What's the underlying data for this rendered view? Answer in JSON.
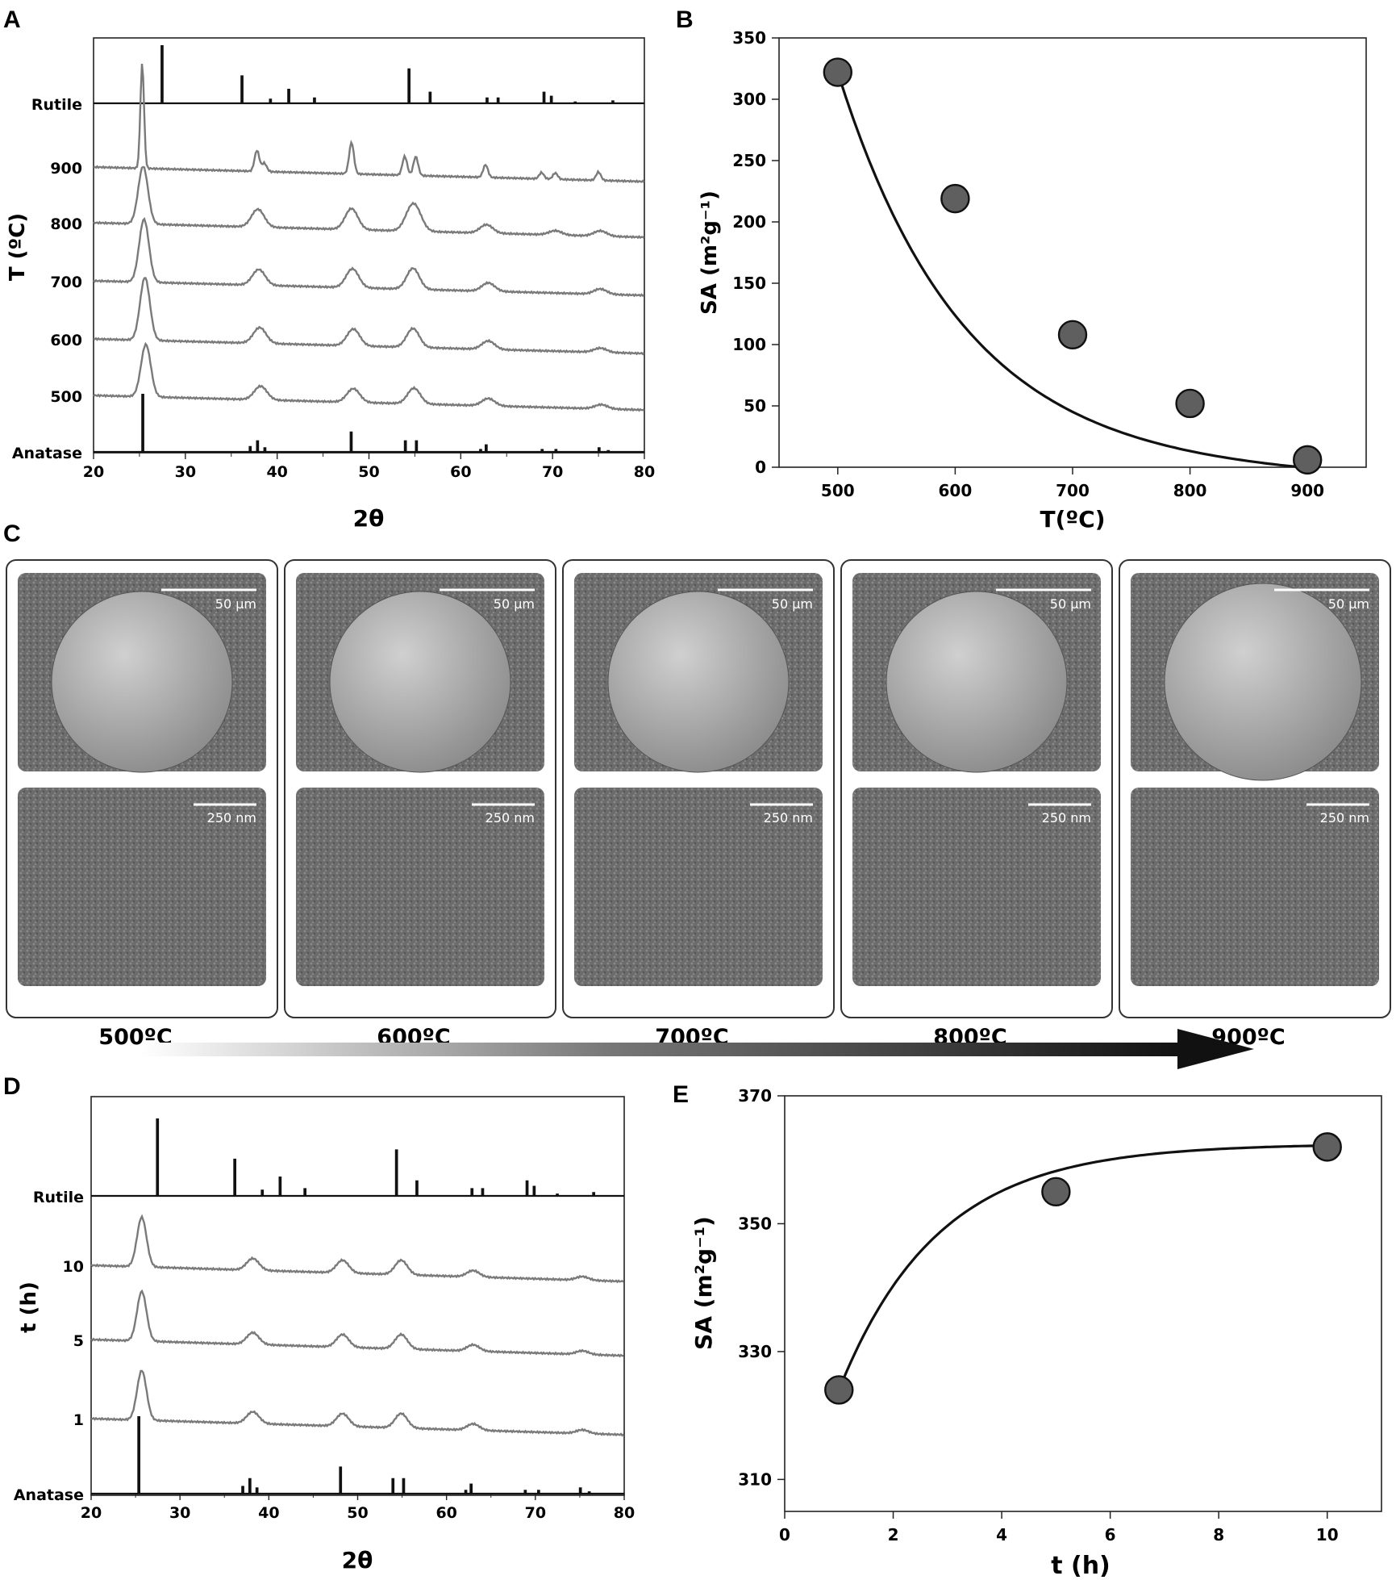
{
  "panels": {
    "A": {
      "letter": "A"
    },
    "B": {
      "letter": "B"
    },
    "C": {
      "letter": "C"
    },
    "D": {
      "letter": "D"
    },
    "E": {
      "letter": "E"
    }
  },
  "sem": {
    "columns": [
      {
        "label": "500ºC",
        "scale_top": "50 µm",
        "scale_bottom": "250 nm"
      },
      {
        "label": "600ºC",
        "scale_top": "50 µm",
        "scale_bottom": "250 nm"
      },
      {
        "label": "700ºC",
        "scale_top": "50 µm",
        "scale_bottom": "250 nm"
      },
      {
        "label": "800ºC",
        "scale_top": "50 µm",
        "scale_bottom": "250 nm"
      },
      {
        "label": "900ºC",
        "scale_top": "50 µm",
        "scale_bottom": "250 nm"
      }
    ]
  },
  "colors": {
    "reference_pattern": "#111111",
    "sample_pattern": "#7a7a7a",
    "marker_fill": "#5f5f5f",
    "sem_background": "#6f6f6f",
    "sphere": "#a9a9a9",
    "arrow": "#111111"
  },
  "icons": {
    "trend_arrow": "right-arrow-gradient-icon"
  },
  "chart_data": [
    {
      "panel": "A",
      "type": "line",
      "xlabel": "2θ",
      "ylabel": "T (ºC)",
      "xlim": [
        20,
        80
      ],
      "xticks": [
        20,
        30,
        40,
        50,
        60,
        70,
        80
      ],
      "series": [
        {
          "name": "Rutile",
          "kind": "reference",
          "peaks": [
            [
              27.4,
              1.0
            ],
            [
              36.1,
              0.48
            ],
            [
              39.2,
              0.08
            ],
            [
              41.2,
              0.25
            ],
            [
              44.0,
              0.1
            ],
            [
              54.3,
              0.6
            ],
            [
              56.6,
              0.2
            ],
            [
              62.8,
              0.1
            ],
            [
              64.0,
              0.1
            ],
            [
              69.0,
              0.2
            ],
            [
              69.8,
              0.13
            ],
            [
              72.4,
              0.03
            ],
            [
              76.5,
              0.05
            ]
          ]
        },
        {
          "name": "900",
          "kind": "sample",
          "peaks": [
            [
              25.3,
              1.0
            ],
            [
              37.8,
              0.2
            ],
            [
              38.6,
              0.08
            ],
            [
              48.1,
              0.3
            ],
            [
              53.9,
              0.18
            ],
            [
              55.1,
              0.18
            ],
            [
              62.7,
              0.12
            ],
            [
              68.8,
              0.06
            ],
            [
              70.3,
              0.06
            ],
            [
              75.0,
              0.08
            ]
          ]
        },
        {
          "name": "800",
          "kind": "sample",
          "peaks": [
            [
              25.4,
              0.55
            ],
            [
              37.9,
              0.17
            ],
            [
              48.1,
              0.2
            ],
            [
              54.5,
              0.15
            ],
            [
              55.2,
              0.15
            ],
            [
              62.8,
              0.08
            ],
            [
              70.3,
              0.04
            ],
            [
              75.2,
              0.05
            ]
          ]
        },
        {
          "name": "700",
          "kind": "sample",
          "peaks": [
            [
              25.5,
              0.6
            ],
            [
              38.0,
              0.15
            ],
            [
              48.2,
              0.18
            ],
            [
              54.8,
              0.2
            ],
            [
              63.0,
              0.08
            ],
            [
              75.2,
              0.05
            ]
          ]
        },
        {
          "name": "600",
          "kind": "sample",
          "peaks": [
            [
              25.6,
              0.6
            ],
            [
              38.1,
              0.15
            ],
            [
              48.3,
              0.16
            ],
            [
              54.8,
              0.18
            ],
            [
              63.0,
              0.08
            ],
            [
              75.2,
              0.04
            ]
          ]
        },
        {
          "name": "500",
          "kind": "sample",
          "peaks": [
            [
              25.7,
              0.5
            ],
            [
              38.2,
              0.13
            ],
            [
              48.3,
              0.13
            ],
            [
              54.9,
              0.15
            ],
            [
              63.0,
              0.07
            ],
            [
              75.3,
              0.04
            ]
          ]
        },
        {
          "name": "Anatase",
          "kind": "reference",
          "peaks": [
            [
              25.3,
              1.0
            ],
            [
              37.0,
              0.1
            ],
            [
              37.8,
              0.2
            ],
            [
              38.6,
              0.08
            ],
            [
              48.0,
              0.35
            ],
            [
              53.9,
              0.2
            ],
            [
              55.1,
              0.2
            ],
            [
              62.1,
              0.05
            ],
            [
              62.7,
              0.13
            ],
            [
              68.8,
              0.05
            ],
            [
              70.3,
              0.05
            ],
            [
              75.0,
              0.08
            ],
            [
              76.0,
              0.03
            ]
          ]
        }
      ]
    },
    {
      "panel": "B",
      "type": "scatter",
      "xlabel": "T(ºC)",
      "ylabel": "SA (m²g⁻¹)",
      "xlim": [
        450,
        950
      ],
      "ylim": [
        0,
        350
      ],
      "xticks": [
        500,
        600,
        700,
        800,
        900
      ],
      "yticks": [
        0,
        50,
        100,
        150,
        200,
        250,
        300,
        350
      ],
      "x": [
        500,
        600,
        700,
        800,
        900
      ],
      "y": [
        322,
        219,
        108,
        52,
        6
      ],
      "fit": "exponential decay"
    },
    {
      "panel": "D",
      "type": "line",
      "xlabel": "2θ",
      "ylabel": "t (h)",
      "xlim": [
        20,
        80
      ],
      "xticks": [
        20,
        30,
        40,
        50,
        60,
        70,
        80
      ],
      "series": [
        {
          "name": "Rutile",
          "kind": "reference",
          "peaks": [
            [
              27.4,
              1.0
            ],
            [
              36.1,
              0.48
            ],
            [
              39.2,
              0.08
            ],
            [
              41.2,
              0.25
            ],
            [
              44.0,
              0.1
            ],
            [
              54.3,
              0.6
            ],
            [
              56.6,
              0.2
            ],
            [
              62.8,
              0.1
            ],
            [
              64.0,
              0.1
            ],
            [
              69.0,
              0.2
            ],
            [
              69.8,
              0.13
            ],
            [
              72.4,
              0.03
            ],
            [
              76.5,
              0.05
            ]
          ]
        },
        {
          "name": "10",
          "kind": "sample",
          "peaks": [
            [
              25.7,
              0.55
            ],
            [
              38.2,
              0.13
            ],
            [
              48.3,
              0.14
            ],
            [
              54.9,
              0.16
            ],
            [
              63.0,
              0.07
            ],
            [
              75.3,
              0.04
            ]
          ]
        },
        {
          "name": "5",
          "kind": "sample",
          "peaks": [
            [
              25.7,
              0.55
            ],
            [
              38.2,
              0.13
            ],
            [
              48.3,
              0.14
            ],
            [
              54.9,
              0.16
            ],
            [
              63.0,
              0.07
            ],
            [
              75.3,
              0.04
            ]
          ]
        },
        {
          "name": "1",
          "kind": "sample",
          "peaks": [
            [
              25.7,
              0.55
            ],
            [
              38.2,
              0.13
            ],
            [
              48.3,
              0.14
            ],
            [
              54.9,
              0.16
            ],
            [
              63.0,
              0.07
            ],
            [
              75.3,
              0.04
            ]
          ]
        },
        {
          "name": "Anatase",
          "kind": "reference",
          "peaks": [
            [
              25.3,
              1.0
            ],
            [
              37.0,
              0.1
            ],
            [
              37.8,
              0.2
            ],
            [
              38.6,
              0.08
            ],
            [
              48.0,
              0.35
            ],
            [
              53.9,
              0.2
            ],
            [
              55.1,
              0.2
            ],
            [
              62.1,
              0.05
            ],
            [
              62.7,
              0.13
            ],
            [
              68.8,
              0.05
            ],
            [
              70.3,
              0.05
            ],
            [
              75.0,
              0.08
            ],
            [
              76.0,
              0.03
            ]
          ]
        }
      ]
    },
    {
      "panel": "E",
      "type": "scatter",
      "xlabel": "t (h)",
      "ylabel": "SA (m²g⁻¹)",
      "xlim": [
        0,
        11
      ],
      "ylim": [
        305,
        370
      ],
      "xticks": [
        0,
        2,
        4,
        6,
        8,
        10
      ],
      "yticks": [
        310,
        330,
        350,
        370
      ],
      "x": [
        1,
        5,
        10
      ],
      "y": [
        324,
        355,
        362
      ],
      "fit": "saturating curve"
    }
  ]
}
